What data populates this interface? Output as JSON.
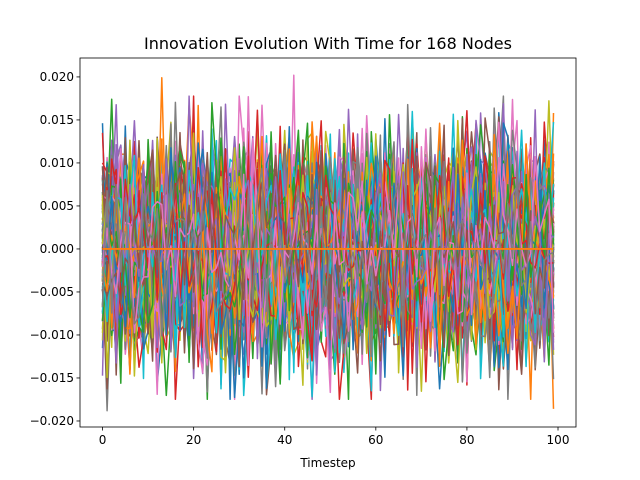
{
  "chart_data": {
    "type": "line",
    "title": "Innovation Evolution With Time for 168 Nodes",
    "xlabel": "Timestep",
    "ylabel": "",
    "xlim": [
      -4.95,
      103.95
    ],
    "ylim": [
      -0.0207,
      0.0222
    ],
    "x_ticks": [
      0,
      20,
      40,
      60,
      80,
      100
    ],
    "x_tick_labels": [
      "0",
      "20",
      "40",
      "60",
      "80",
      "100"
    ],
    "y_ticks": [
      -0.02,
      -0.015,
      -0.01,
      -0.005,
      0.0,
      0.005,
      0.01,
      0.015,
      0.02
    ],
    "y_tick_labels": [
      "−0.020",
      "−0.015",
      "−0.010",
      "−0.005",
      "0.000",
      "0.005",
      "0.010",
      "0.015",
      "0.020"
    ],
    "grid": false,
    "legend": "none",
    "series_count": 168,
    "timesteps": 100,
    "value_range": [
      -0.0188,
      0.0202
    ],
    "typical_amplitude": 0.0085,
    "palette": [
      "#1f77b4",
      "#ff7f0e",
      "#2ca02c",
      "#d62728",
      "#9467bd",
      "#8c564b",
      "#e377c2",
      "#7f7f7f",
      "#bcbd22",
      "#17becf"
    ],
    "notable_peaks": [
      {
        "x": 42,
        "y": 0.0202
      },
      {
        "x": 13,
        "y": 0.0199
      },
      {
        "x": 1,
        "y": -0.0188
      },
      {
        "x": 99,
        "y": -0.0186
      }
    ]
  }
}
